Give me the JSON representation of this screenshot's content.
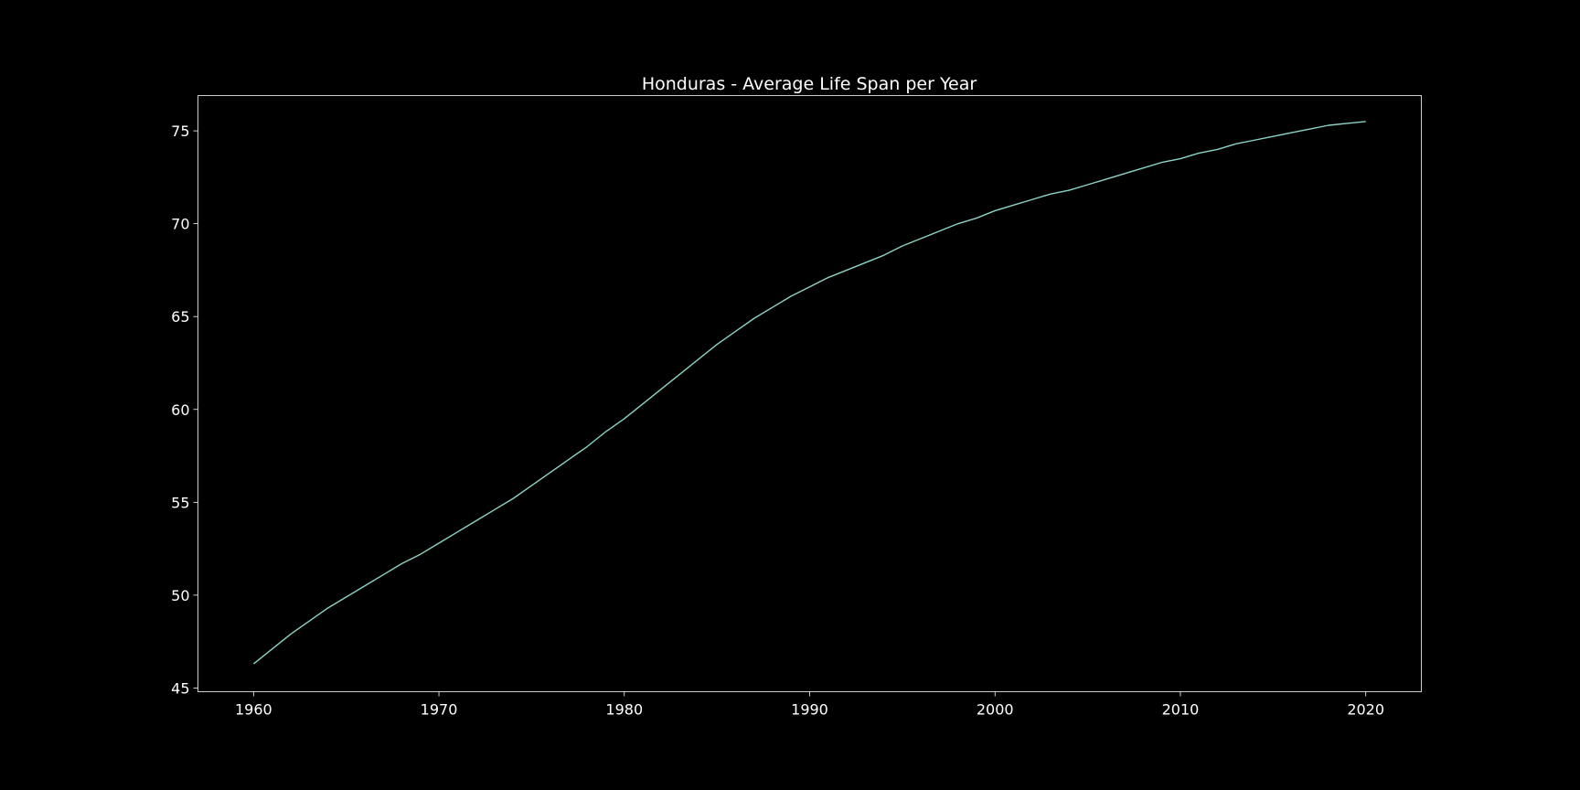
{
  "chart_data": {
    "type": "line",
    "title": "Honduras - Average Life Span per Year",
    "xlabel": "",
    "ylabel": "",
    "xlim": [
      1957,
      2023
    ],
    "ylim": [
      44.8,
      76.9
    ],
    "x_ticks": [
      1960,
      1970,
      1980,
      1990,
      2000,
      2010,
      2020
    ],
    "y_ticks": [
      45,
      50,
      55,
      60,
      65,
      70,
      75
    ],
    "grid": false,
    "legend": "none",
    "series": [
      {
        "color": "#8dd3c7",
        "x": [
          1960,
          1961,
          1962,
          1963,
          1964,
          1965,
          1966,
          1967,
          1968,
          1969,
          1970,
          1971,
          1972,
          1973,
          1974,
          1975,
          1976,
          1977,
          1978,
          1979,
          1980,
          1981,
          1982,
          1983,
          1984,
          1985,
          1986,
          1987,
          1988,
          1989,
          1990,
          1991,
          1992,
          1993,
          1994,
          1995,
          1996,
          1997,
          1998,
          1999,
          2000,
          2001,
          2002,
          2003,
          2004,
          2005,
          2006,
          2007,
          2008,
          2009,
          2010,
          2011,
          2012,
          2013,
          2014,
          2015,
          2016,
          2017,
          2018,
          2019,
          2020
        ],
        "values": [
          46.3,
          47.1,
          47.9,
          48.6,
          49.3,
          49.9,
          50.5,
          51.1,
          51.7,
          52.2,
          52.8,
          53.4,
          54.0,
          54.6,
          55.2,
          55.9,
          56.6,
          57.3,
          58.0,
          58.8,
          59.5,
          60.3,
          61.1,
          61.9,
          62.7,
          63.5,
          64.2,
          64.9,
          65.5,
          66.1,
          66.6,
          67.1,
          67.5,
          67.9,
          68.3,
          68.8,
          69.2,
          69.6,
          70.0,
          70.3,
          70.7,
          71.0,
          71.3,
          71.6,
          71.8,
          72.1,
          72.4,
          72.7,
          73.0,
          73.3,
          73.5,
          73.8,
          74.0,
          74.3,
          74.5,
          74.7,
          74.9,
          75.1,
          75.3,
          75.4,
          75.5
        ]
      }
    ]
  }
}
